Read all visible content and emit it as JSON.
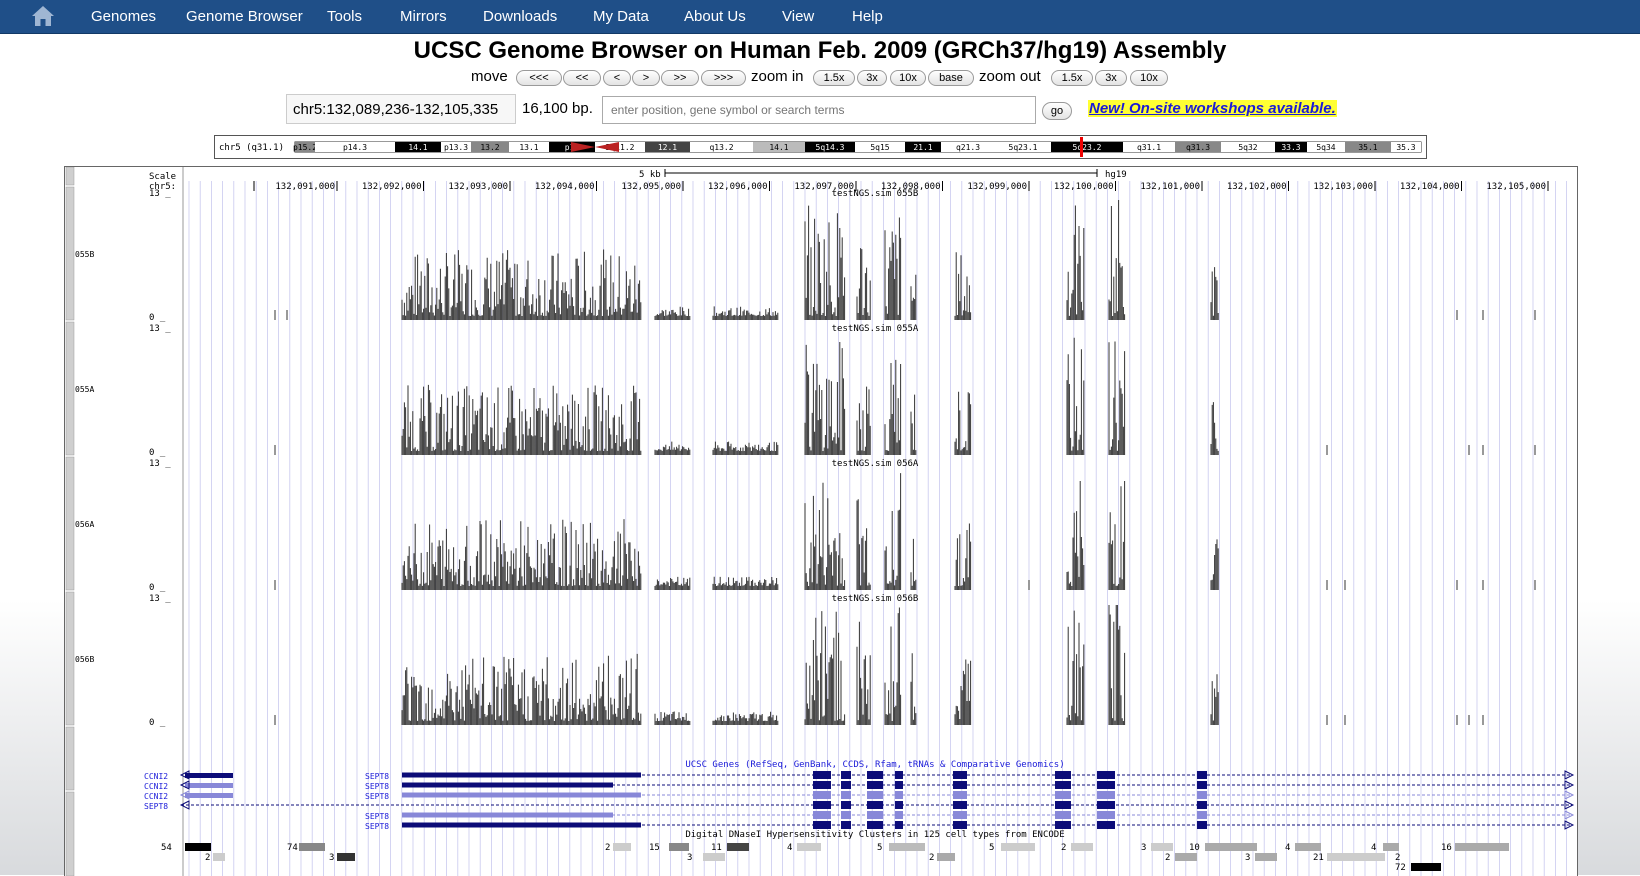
{
  "nav": {
    "home_label": "Home",
    "items": [
      "Genomes",
      "Genome Browser",
      "Tools",
      "Mirrors",
      "Downloads",
      "My Data",
      "About Us",
      "View",
      "Help"
    ]
  },
  "page_title": "UCSC Genome Browser on Human Feb. 2009 (GRCh37/hg19) Assembly",
  "controls": {
    "move_label": "move",
    "move_buttons": [
      "<<<",
      "<<",
      "<",
      ">",
      ">>",
      ">>>"
    ],
    "zoom_in_label": "zoom in",
    "zoom_in_buttons": [
      "1.5x",
      "3x",
      "10x",
      "base"
    ],
    "zoom_out_label": "zoom out",
    "zoom_out_buttons": [
      "1.5x",
      "3x",
      "10x"
    ]
  },
  "position": {
    "value": "chr5:132,089,236-132,105,335",
    "size": "16,100 bp.",
    "search_placeholder": "enter position, gene symbol or search terms",
    "go_label": "go",
    "promo": "New! On-site workshops available."
  },
  "ideogram": {
    "label": "chr5 (q31.1)",
    "bands": [
      "p15.2",
      "p14.3",
      "14.1",
      "p13.3",
      "13.2",
      "13.1",
      "p12",
      "5q11.2",
      "12.1",
      "q13.2",
      "14.1",
      "5q14.3",
      "5q15",
      "21.1",
      "q21.3",
      "5q23.1",
      "5q23.2",
      "q31.1",
      "q31.3",
      "5q32",
      "33.3",
      "5q34",
      "35.1",
      "35.3"
    ]
  },
  "ruler": {
    "scale_label": "Scale",
    "chrom_label": "chr5:",
    "scale_text": "5 kb",
    "assembly": "hg19",
    "ticks": [
      "132,091,000",
      "132,092,000",
      "132,093,000",
      "132,094,000",
      "132,095,000",
      "132,096,000",
      "132,097,000",
      "132,098,000",
      "132,099,000",
      "132,100,000",
      "132,101,000",
      "132,102,000",
      "132,103,000",
      "132,104,000",
      "132,105,000"
    ]
  },
  "tracks": [
    {
      "short": "055B",
      "title": "testNGS.sim 055B",
      "max": "13 _",
      "min": "0 _"
    },
    {
      "short": "055A",
      "title": "testNGS.sim 055A",
      "max": "13 _",
      "min": "0 _"
    },
    {
      "short": "056A",
      "title": "testNGS.sim 056A",
      "max": "13 _",
      "min": "0 _"
    },
    {
      "short": "056B",
      "title": "testNGS.sim 056B",
      "max": "13 _",
      "min": "0 _"
    }
  ],
  "genes": {
    "title": "UCSC Genes (RefSeq, GenBank, CCDS, Rfam, tRNAs & Comparative Genomics)",
    "left_labels": [
      "CCNI2",
      "CCNI2",
      "CCNI2",
      "SEPT8"
    ],
    "mid_labels": [
      "SEPT8",
      "SEPT8",
      "SEPT8",
      "SEPT8",
      "SEPT8",
      "SEPT8"
    ]
  },
  "dnase": {
    "title": "Digital DNaseI Hypersensitivity Clusters in 125 cell types from ENCODE",
    "scores": [
      "54",
      "2",
      "74",
      "3",
      "2",
      "15",
      "3",
      "11",
      "4",
      "5",
      "2",
      "5",
      "2",
      "3",
      "2",
      "10",
      "3",
      "4",
      "21",
      "4",
      "2",
      "72",
      "16"
    ]
  },
  "colors": {
    "nav_bg": "#1f4f88",
    "gene_dark": "#0c0c78",
    "gene_light": "#8888d8",
    "wiggle": "#333333",
    "promo_bg": "#ffff33",
    "promo_text": "#1a1ad8"
  }
}
